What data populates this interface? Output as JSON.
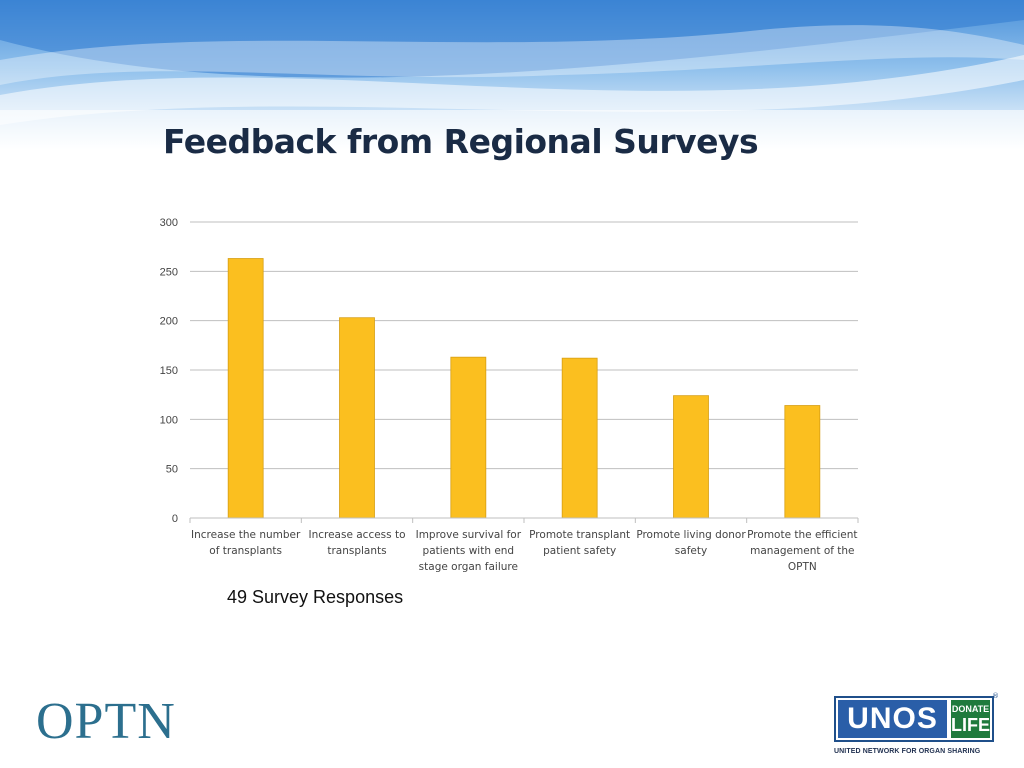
{
  "slide": {
    "title": "Feedback from Regional Surveys",
    "note": "49 Survey Responses"
  },
  "logos": {
    "optn": "OPTN",
    "unos": "UNOS",
    "donate": "DONATE",
    "life": "LIFE",
    "registered": "®",
    "unos_tagline": "UNITED NETWORK FOR ORGAN SHARING"
  },
  "colors": {
    "bar": "#fbbf1f",
    "bar_stroke": "#d79f14",
    "grid": "#bfbfbf",
    "title": "#1a2b45",
    "optn": "#2c6f8e",
    "unos_blue": "#2a5ea8",
    "donate_life_green": "#1f7a3d"
  },
  "chart_data": {
    "type": "bar",
    "categories": [
      "Increase the number of transplants",
      "Increase access to transplants",
      "Improve survival for patients with end stage organ failure",
      "Promote transplant patient safety",
      "Promote living donor safety",
      "Promote the efficient management of the OPTN"
    ],
    "category_lines": [
      [
        "Increase the number",
        "of transplants"
      ],
      [
        "Increase access to",
        "transplants"
      ],
      [
        "Improve survival for",
        "patients with end",
        "stage organ failure"
      ],
      [
        "Promote transplant",
        "patient safety"
      ],
      [
        "Promote living donor",
        "safety"
      ],
      [
        "Promote the efficient",
        "management of the",
        "OPTN"
      ]
    ],
    "values": [
      263,
      203,
      163,
      162,
      124,
      114
    ],
    "ylim": [
      0,
      300
    ],
    "yticks": [
      0,
      50,
      100,
      150,
      200,
      250,
      300
    ],
    "grid": true,
    "legend": "none",
    "title": "",
    "xlabel": "",
    "ylabel": ""
  }
}
